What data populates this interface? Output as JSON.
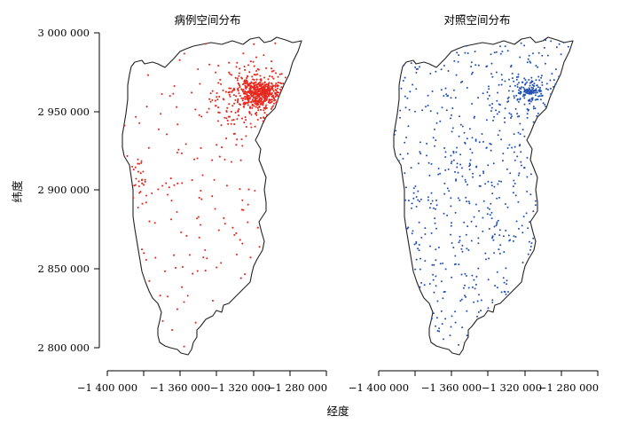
{
  "panels": [
    {
      "title": "病例空间分布",
      "color": "#e8281e",
      "density": "case"
    },
    {
      "title": "对照空间分布",
      "color": "#1f4fb5",
      "density": "control"
    }
  ],
  "axes": {
    "xlabel": "经度",
    "ylabel": "纬度",
    "y_ticks": [
      "3 000 000",
      "2 950 000",
      "2 900 000",
      "2 850 000",
      "2 800 000"
    ],
    "x_ticks": [
      "−1 400 000",
      "−1 360 000",
      "−1 320 000",
      "−1 280 000"
    ],
    "y_values": [
      3000000,
      2950000,
      2900000,
      2850000,
      2800000
    ],
    "x_values": [
      -1400000,
      -1360000,
      -1320000,
      -1280000
    ]
  }
}
